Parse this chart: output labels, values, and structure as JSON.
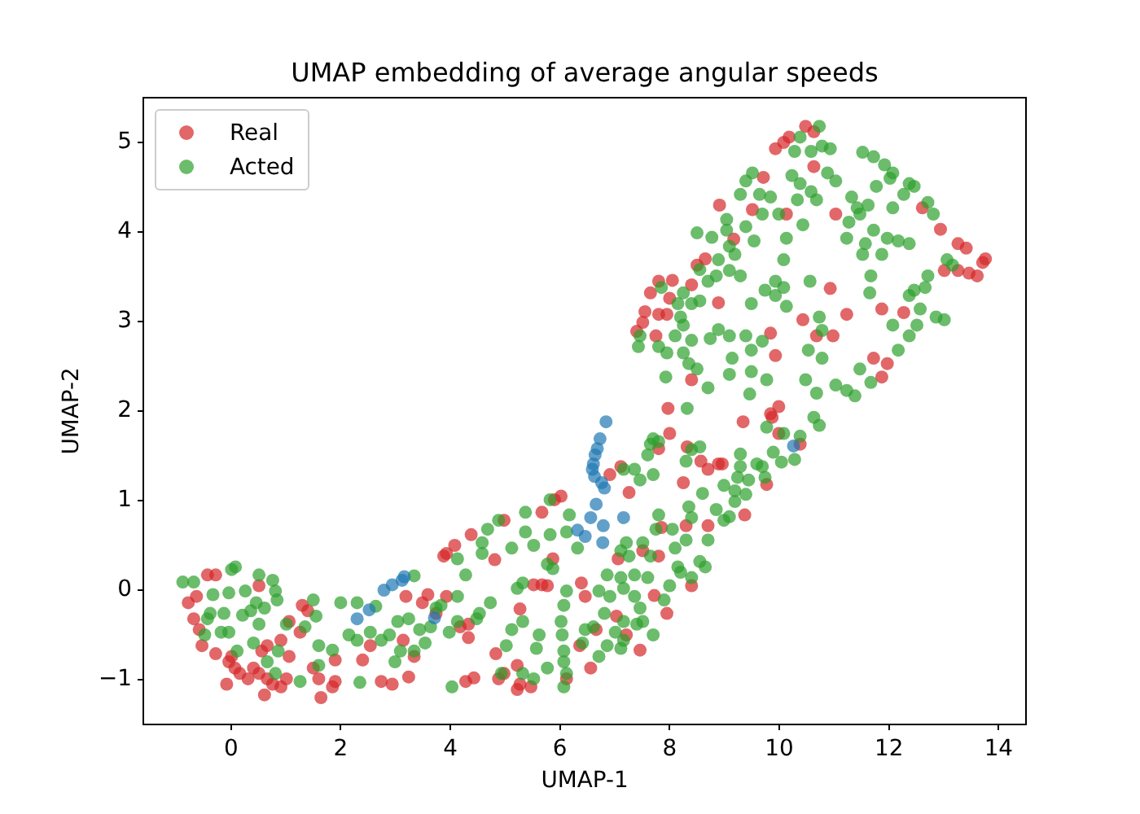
{
  "chart_data": {
    "type": "scatter",
    "title": "UMAP embedding of average angular speeds",
    "xlabel": "UMAP-1",
    "ylabel": "UMAP-2",
    "xlim": [
      -1.6,
      14.5
    ],
    "ylim": [
      -1.5,
      5.5
    ],
    "xticks": [
      0,
      2,
      4,
      6,
      8,
      10,
      12,
      14
    ],
    "yticks": [
      -1,
      0,
      1,
      2,
      3,
      4,
      5
    ],
    "grid": false,
    "legend": "top left",
    "marker": "circle",
    "series": [
      {
        "name": "Real",
        "color": "#d62728",
        "x": [
          -0.43,
          -0.28,
          -0.63,
          -0.78,
          -0.68,
          -0.58,
          -0.53,
          -0.28,
          0.01,
          0.07,
          0.16,
          0.31,
          0.51,
          0.66,
          0.61,
          0.91,
          1.01,
          0.76,
          0.41,
          -0.04,
          0.66,
          0.91,
          1.06,
          1.26,
          1.3,
          1.4,
          1.5,
          1.64,
          1.6,
          1.85,
          1.9,
          1.9,
          2.4,
          2.54,
          2.74,
          2.94,
          3.24,
          3.34,
          3.14,
          3.19,
          3.49,
          3.59,
          3.74,
          1.06,
          0.51,
          0.56,
          -0.08,
          8.0,
          7.8,
          8.32,
          8.89,
          8.7,
          8.25,
          7.11,
          6.91,
          6.02,
          5.9,
          5.67,
          4.98,
          4.38,
          3.93,
          3.88,
          4.08,
          4.81,
          5.87,
          5.52,
          5.67,
          5.77,
          6.39,
          6.46,
          5.27,
          4.33,
          4.18,
          4.33,
          3.93,
          4.83,
          4.88,
          4.98,
          5.22,
          5.27,
          5.47,
          5.22,
          4.28,
          4.43,
          6.12,
          6.56,
          6.36,
          6.66,
          7.03,
          7.21,
          7.46,
          7.06,
          7.51,
          7.8,
          7.85,
          7.26,
          7.72,
          7.95,
          8.4,
          8.7,
          8.3,
          8.57,
          8.96,
          8.91,
          8.5,
          8.65,
          7.8,
          8.05,
          8.4,
          7.65,
          7.55,
          7.8,
          7.95,
          7.4,
          7.51,
          7.75,
          8.0,
          8.89,
          8.4,
          7.97,
          9.93,
          10.08,
          10.18,
          10.48,
          10.63,
          10.63,
          9.71,
          9.51,
          10.13,
          11.03,
          9.17,
          12.61,
          12.94,
          13.26,
          13.41,
          13.76,
          13.71,
          13.46,
          13.61,
          13.26,
          13.01,
          10.93,
          10.43,
          11.23,
          11.87,
          12.27,
          9.84,
          9.93,
          10.68,
          10.98,
          11.72,
          11.97,
          11.87,
          9.99,
          9.84,
          9.34,
          9.87,
          9.99,
          10.38,
          9.77,
          9.37
        ],
        "values": [
          0.17,
          0.17,
          -0.07,
          -0.14,
          -0.32,
          -0.44,
          -0.62,
          -0.71,
          -0.74,
          -0.87,
          -0.93,
          -0.99,
          -0.93,
          -0.99,
          -1.17,
          -1.08,
          -0.99,
          -1.05,
          -0.87,
          -0.8,
          -0.62,
          -0.56,
          -0.74,
          -0.47,
          -0.17,
          -0.23,
          -0.87,
          -1.2,
          -0.99,
          -1.08,
          -1.02,
          -0.78,
          -0.78,
          -0.62,
          -1.02,
          -1.05,
          -0.97,
          -0.74,
          -0.56,
          -0.07,
          -0.14,
          -0.05,
          -0.26,
          -0.35,
          0.05,
          -0.68,
          -1.05,
          1.75,
          1.58,
          1.6,
          1.41,
          1.35,
          1.2,
          1.38,
          1.29,
          1.05,
          1.01,
          0.87,
          0.78,
          0.62,
          0.41,
          0.38,
          0.5,
          0.34,
          0.35,
          0.06,
          0.06,
          0.05,
          0.08,
          -0.07,
          -0.21,
          -0.38,
          -0.41,
          -0.53,
          -0.07,
          -0.71,
          -0.99,
          -0.93,
          -0.84,
          -1.05,
          -1.08,
          -1.11,
          -1.02,
          -0.98,
          -0.99,
          -0.87,
          -0.62,
          -0.44,
          -0.29,
          -0.5,
          -0.67,
          0.35,
          0.44,
          0.38,
          0.7,
          1.09,
          -0.06,
          -0.26,
          0.05,
          0.72,
          0.72,
          1.44,
          1.41,
          4.3,
          3.63,
          3.7,
          3.45,
          3.46,
          3.41,
          3.32,
          3.11,
          3.08,
          3.08,
          2.89,
          2.99,
          2.84,
          3.26,
          3.21,
          2.35,
          2.03,
          4.93,
          5.0,
          5.06,
          5.18,
          5.12,
          4.73,
          4.61,
          4.25,
          4.2,
          4.2,
          3.92,
          4.27,
          4.03,
          3.87,
          3.82,
          3.7,
          3.66,
          3.54,
          3.51,
          3.57,
          3.57,
          3.37,
          3.02,
          3.08,
          3.14,
          3.1,
          2.87,
          2.62,
          2.84,
          2.84,
          2.59,
          2.53,
          2.38,
          2.05,
          1.97,
          1.88,
          1.93,
          1.75,
          1.63,
          1.18,
          0.84
        ]
      },
      {
        "name": "Acted",
        "color": "#2ca02c",
        "x": [
          -0.88,
          -0.68,
          0.01,
          0.08,
          0.51,
          0.76,
          0.81,
          0.84,
          -0.33,
          -0.04,
          0.26,
          0.46,
          0.61,
          -0.38,
          -0.13,
          0.21,
          0.36,
          -0.43,
          -0.48,
          -0.18,
          -0.04,
          0.11,
          0.41,
          0.86,
          0.51,
          1.01,
          1.35,
          1.55,
          1.5,
          1.6,
          1.85,
          1.6,
          1.26,
          0.81,
          0.66,
          2.0,
          2.3,
          2.64,
          2.15,
          2.3,
          2.54,
          2.74,
          2.89,
          3.04,
          3.24,
          3.09,
          3.34,
          3.54,
          3.44,
          3.64,
          2.35,
          3.34,
          3.74,
          2.99,
          7.7,
          7.65,
          7.8,
          7.6,
          7.16,
          7.36,
          7.46,
          7.7,
          8.4,
          8.55,
          8.3,
          8.99,
          8.6,
          8.35,
          8.4,
          8.85,
          8.99,
          8.05,
          7.8,
          7.75,
          7.51,
          7.21,
          7.11,
          7.26,
          7.65,
          8.1,
          8.3,
          8.55,
          8.65,
          8.2,
          8.4,
          8.0,
          7.6,
          7.36,
          7.11,
          6.86,
          6.71,
          6.91,
          7.16,
          7.36,
          7.46,
          7.51,
          7.16,
          7.01,
          6.86,
          6.61,
          6.46,
          6.41,
          6.02,
          6.04,
          6.07,
          6.07,
          6.12,
          6.07,
          5.77,
          5.57,
          5.62,
          5.32,
          5.12,
          5.02,
          4.93,
          5.32,
          5.52,
          4.88,
          5.37,
          5.82,
          6.17,
          5.82,
          6.12,
          6.32,
          5.87,
          5.77,
          5.32,
          5.22,
          4.73,
          4.53,
          4.48,
          4.13,
          3.98,
          4.13,
          3.83,
          4.28,
          4.13,
          4.58,
          4.58,
          4.68,
          5.52,
          6.12,
          6.07,
          6.71,
          7.11,
          7.4,
          7.9,
          8.15,
          8.7,
          5.12,
          5.37,
          4.03,
          7.16,
          7.7,
          6.81,
          9.04,
          8.5,
          8.77,
          9.04,
          9.09,
          8.55,
          8.7,
          8.89,
          8.85,
          9.09,
          7.85,
          8.25,
          8.4,
          8.55,
          8.15,
          8.2,
          8.25,
          8.1,
          8.4,
          8.74,
          8.89,
          9.09,
          7.8,
          7.95,
          8.25,
          8.35,
          8.5,
          7.93,
          8.7,
          9.09,
          8.32,
          7.46,
          7.43,
          10.38,
          10.73,
          10.78,
          10.93,
          10.28,
          10.58,
          11.52,
          11.72,
          11.92,
          12.07,
          12.37,
          12.46,
          12.27,
          12.02,
          11.77,
          12.07,
          9.51,
          9.39,
          9.29,
          9.64,
          9.84,
          10.23,
          10.38,
          10.58,
          10.68,
          10.88,
          11.03,
          11.32,
          11.42,
          11.62,
          11.47,
          11.27,
          11.72,
          11.97,
          12.17,
          12.37,
          11.23,
          11.57,
          11.52,
          11.87,
          12.71,
          12.81,
          13.06,
          13.16,
          12.71,
          12.46,
          12.37,
          12.66,
          12.57,
          12.86,
          13.01,
          12.51,
          12.37,
          12.17,
          12.07,
          11.67,
          11.65,
          10.56,
          10.08,
          9.93,
          10.13,
          10.73,
          10.78,
          10.53,
          10.78,
          9.69,
          9.49,
          9.39,
          9.14,
          9.77,
          9.49,
          10.48,
          10.68,
          11.03,
          11.23,
          11.47,
          11.67,
          11.38,
          9.46,
          10.08,
          9.93,
          9.49,
          9.74,
          9.29,
          10.13,
          10.43,
          9.69,
          9.99,
          10.33,
          9.39,
          9.54,
          9.19,
          10.63,
          10.73,
          9.77,
          10.08,
          10.38,
          9.89,
          10.04,
          10.28,
          9.29,
          9.29,
          9.59,
          9.69,
          9.24,
          9.44,
          9.74,
          9.19,
          9.39,
          9.19,
          9.09
        ],
        "values": [
          0.09,
          0.09,
          0.23,
          0.26,
          0.17,
          0.11,
          -0.01,
          -0.11,
          -0.05,
          -0.03,
          -0.01,
          -0.14,
          -0.2,
          -0.26,
          -0.26,
          -0.28,
          -0.23,
          -0.32,
          -0.5,
          -0.47,
          -0.47,
          -0.68,
          -0.59,
          -0.68,
          -0.38,
          -0.38,
          -0.41,
          -0.29,
          -0.11,
          -0.62,
          -0.67,
          -0.84,
          -1.02,
          -0.93,
          -0.8,
          -0.14,
          -0.14,
          -0.18,
          -0.5,
          -0.56,
          -0.47,
          -0.56,
          -0.5,
          -0.35,
          -0.32,
          -0.68,
          -0.68,
          -0.59,
          -0.44,
          -0.41,
          -1.03,
          0.16,
          -0.2,
          -0.8,
          1.69,
          1.63,
          1.66,
          1.51,
          1.35,
          1.35,
          1.23,
          1.29,
          1.57,
          1.6,
          1.44,
          1.17,
          1.08,
          0.93,
          0.81,
          0.9,
          0.78,
          0.68,
          0.84,
          0.68,
          0.53,
          0.53,
          0.44,
          0.38,
          0.38,
          0.47,
          0.56,
          0.32,
          0.26,
          0.2,
          0.14,
          0.05,
          0.14,
          0.17,
          0.14,
          0.17,
          -0.01,
          -0.07,
          0.02,
          -0.07,
          -0.2,
          -0.35,
          -0.35,
          -0.47,
          -0.62,
          -0.41,
          -0.44,
          -0.59,
          -0.35,
          -0.5,
          -0.68,
          -0.8,
          -0.93,
          -1.08,
          -0.87,
          -0.65,
          -0.5,
          -0.35,
          -0.44,
          -0.62,
          -0.93,
          -0.93,
          -0.99,
          0.78,
          0.87,
          1.01,
          0.84,
          0.62,
          0.65,
          0.47,
          0.24,
          0.29,
          0.08,
          0.02,
          -0.14,
          -0.26,
          -0.32,
          -0.35,
          -0.47,
          -0.07,
          -0.17,
          0.17,
          0.35,
          0.41,
          0.53,
          0.68,
          0.5,
          -0.01,
          -0.17,
          -0.74,
          -0.65,
          -0.38,
          -0.11,
          0.26,
          0.56,
          0.47,
          0.65,
          -1.08,
          -0.56,
          -0.5,
          -0.26,
          4.14,
          3.99,
          3.94,
          4.02,
          3.84,
          3.58,
          3.45,
          3.69,
          3.51,
          3.57,
          3.38,
          3.32,
          3.2,
          3.23,
          3.2,
          3.05,
          2.96,
          2.84,
          2.79,
          2.81,
          2.91,
          2.84,
          2.72,
          2.65,
          2.65,
          2.53,
          2.47,
          2.38,
          2.26,
          2.41,
          2.03,
          2.84,
          2.72,
          5.06,
          5.18,
          4.96,
          4.93,
          4.9,
          4.9,
          4.89,
          4.84,
          4.75,
          4.66,
          4.54,
          4.51,
          4.42,
          4.6,
          4.51,
          4.27,
          4.66,
          4.57,
          4.42,
          4.42,
          4.39,
          4.63,
          4.54,
          4.45,
          4.36,
          4.66,
          4.57,
          4.39,
          4.27,
          4.3,
          4.2,
          4.11,
          4.02,
          3.93,
          3.9,
          3.87,
          3.93,
          3.87,
          3.75,
          3.75,
          4.33,
          4.2,
          3.69,
          3.63,
          3.51,
          3.35,
          3.29,
          3.38,
          3.14,
          3.05,
          3.02,
          2.96,
          2.84,
          2.68,
          2.96,
          3.51,
          3.32,
          3.45,
          3.38,
          3.29,
          3.17,
          3.05,
          2.9,
          2.68,
          2.59,
          2.78,
          2.68,
          2.84,
          2.59,
          2.35,
          2.44,
          2.35,
          2.2,
          2.29,
          2.23,
          2.47,
          2.32,
          2.17,
          2.19,
          3.69,
          3.45,
          3.2,
          3.35,
          3.51,
          3.93,
          4.08,
          4.2,
          4.2,
          4.36,
          4.06,
          3.9,
          3.75,
          1.93,
          1.84,
          1.82,
          1.75,
          1.72,
          1.54,
          1.43,
          1.46,
          1.52,
          1.38,
          1.41,
          1.38,
          1.26,
          1.23,
          1.26,
          1.11,
          1.07,
          0.99,
          0.82
        ]
      },
      {
        "color": "#1f77b4",
        "x": [
          2.79,
          2.94,
          3.12,
          3.16,
          2.3,
          2.52,
          3.71,
          6.84,
          6.73,
          6.68,
          6.64,
          6.61,
          6.59,
          6.63,
          6.76,
          6.81,
          6.66,
          6.56,
          6.32,
          6.46,
          6.79,
          6.78,
          7.16,
          10.26
        ],
        "values": [
          0,
          0.06,
          0.11,
          0.15,
          -0.32,
          -0.22,
          -0.31,
          1.88,
          1.69,
          1.58,
          1.51,
          1.41,
          1.35,
          1.27,
          1.2,
          1.14,
          0.96,
          0.81,
          0.67,
          0.6,
          0.72,
          0.53,
          0.81,
          1.61
        ]
      }
    ]
  }
}
